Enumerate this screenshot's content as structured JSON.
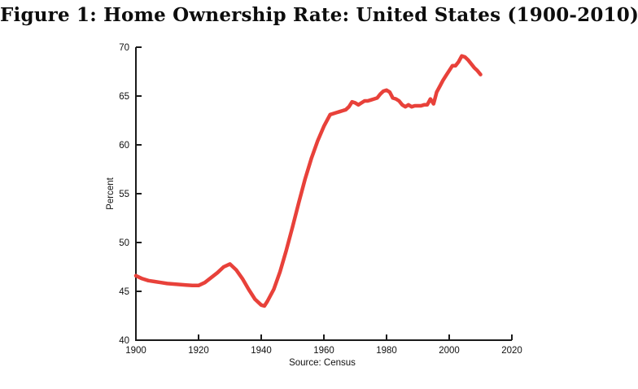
{
  "figure": {
    "title": "Figure 1: Home Ownership Rate: United States (1900-2010)",
    "source_note": "Source: Census"
  },
  "chart_data": {
    "type": "line",
    "title": "Figure 1: Home Ownership Rate: United States (1900-2010)",
    "xlabel": "",
    "ylabel": "Percent",
    "source": "Source: Census",
    "xlim": [
      1900,
      2020
    ],
    "ylim": [
      40,
      70
    ],
    "x_ticks": [
      1900,
      1920,
      1940,
      1960,
      1980,
      2000,
      2020
    ],
    "y_ticks": [
      40,
      45,
      50,
      55,
      60,
      65,
      70
    ],
    "grid": false,
    "legend": "none",
    "line_color": "#e8413a",
    "axis_color": "#1a1a1a",
    "series": [
      {
        "name": "Home Ownership Rate",
        "x": [
          1900,
          1902,
          1904,
          1906,
          1908,
          1910,
          1912,
          1914,
          1916,
          1918,
          1920,
          1922,
          1924,
          1926,
          1928,
          1930,
          1932,
          1934,
          1936,
          1938,
          1940,
          1941,
          1942,
          1944,
          1946,
          1948,
          1950,
          1952,
          1954,
          1956,
          1958,
          1960,
          1962,
          1964,
          1965,
          1966,
          1967,
          1968,
          1969,
          1970,
          1971,
          1972,
          1973,
          1974,
          1975,
          1976,
          1977,
          1978,
          1979,
          1980,
          1981,
          1982,
          1983,
          1984,
          1985,
          1986,
          1987,
          1988,
          1989,
          1990,
          1991,
          1992,
          1993,
          1994,
          1995,
          1996,
          1997,
          1998,
          1999,
          2000,
          2001,
          2002,
          2003,
          2004,
          2005,
          2006,
          2007,
          2008,
          2009,
          2010
        ],
        "values": [
          46.6,
          46.3,
          46.1,
          46.0,
          45.9,
          45.8,
          45.75,
          45.7,
          45.65,
          45.6,
          45.6,
          45.9,
          46.4,
          46.9,
          47.5,
          47.8,
          47.2,
          46.3,
          45.2,
          44.2,
          43.6,
          43.5,
          44.0,
          45.2,
          47.0,
          49.2,
          51.6,
          54.1,
          56.5,
          58.6,
          60.4,
          61.9,
          63.1,
          63.3,
          63.4,
          63.5,
          63.6,
          63.9,
          64.4,
          64.3,
          64.1,
          64.3,
          64.5,
          64.5,
          64.6,
          64.7,
          64.8,
          65.2,
          65.5,
          65.6,
          65.4,
          64.8,
          64.7,
          64.5,
          64.1,
          63.9,
          64.1,
          63.9,
          64.0,
          64.0,
          64.0,
          64.1,
          64.1,
          64.7,
          64.2,
          65.4,
          66.0,
          66.6,
          67.1,
          67.6,
          68.1,
          68.1,
          68.5,
          69.1,
          69.0,
          68.7,
          68.3,
          67.9,
          67.6,
          67.2
        ]
      }
    ]
  }
}
